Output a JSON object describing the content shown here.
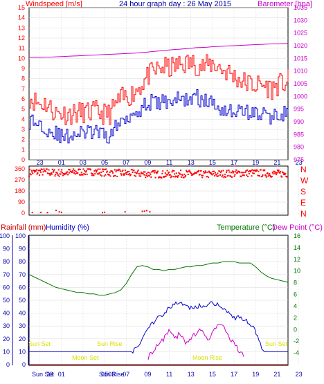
{
  "colors": {
    "wind": "#ff0000",
    "gust_low": "#0000cc",
    "barometer": "#cc00cc",
    "direction": "#ff0000",
    "temperature": "#007700",
    "humidity": "#0000cc",
    "dewpoint": "#cc00cc",
    "rainfall": "#cc0000",
    "sun_labels": "#dddd00",
    "axis_blue": "#0000aa",
    "axis_red": "#ff0000",
    "axis_green": "#007700"
  },
  "chart_data": [
    {
      "type": "line",
      "id": "wind-barometer",
      "title": "24 hour graph day : 26 May 2015",
      "left_axis_label": "Windspeed [m/s]",
      "right_axis_label": "Barometer [hpa]",
      "y_left": {
        "min": 0,
        "max": 15,
        "ticks": [
          0,
          1,
          2,
          3,
          4,
          5,
          6,
          7,
          8,
          9,
          10,
          11,
          12,
          13,
          14,
          15
        ]
      },
      "y_right": {
        "min": 975,
        "max": 1035,
        "ticks": [
          975,
          980,
          985,
          990,
          995,
          1000,
          1005,
          1010,
          1015,
          1020,
          1025,
          1030,
          1035
        ]
      },
      "x_ticks": [
        "23",
        "01",
        "03",
        "05",
        "07",
        "09",
        "11",
        "13",
        "15",
        "17",
        "19",
        "21",
        "23"
      ],
      "series": [
        {
          "key": "wind_max",
          "values": [
            6.2,
            5.8,
            5.5,
            5.6,
            5.0,
            4.6,
            4.6,
            4.5,
            4.6,
            4.6,
            4.7,
            4.6,
            4.8,
            4.6,
            4.5,
            4.6,
            5.5,
            6.0,
            6.2,
            6.5,
            7.0,
            7.6,
            8.3,
            8.6,
            9.0,
            9.1,
            9.0,
            9.2,
            9.4,
            9.5,
            9.5,
            9.4,
            9.2,
            9.3,
            9.5,
            9.2,
            8.8,
            8.6,
            8.2,
            7.9,
            7.6,
            7.5,
            7.3,
            7.4,
            7.2,
            7.0,
            7.4,
            7.5,
            7.8
          ]
        },
        {
          "key": "wind_min",
          "values": [
            3.8,
            3.7,
            3.5,
            3.2,
            2.8,
            2.6,
            2.2,
            2.3,
            2.6,
            2.5,
            2.7,
            2.6,
            2.8,
            2.6,
            2.2,
            2.5,
            3.2,
            3.8,
            4.3,
            4.6,
            4.9,
            5.2,
            5.6,
            5.7,
            5.5,
            5.8,
            5.8,
            6.0,
            5.9,
            6.0,
            6.0,
            6.2,
            5.8,
            5.7,
            5.6,
            5.3,
            5.0,
            4.9,
            4.8,
            4.8,
            4.8,
            4.7,
            4.5,
            4.6,
            4.3,
            4.2,
            4.5,
            4.6,
            4.8
          ]
        },
        {
          "key": "barometer",
          "values": [
            1015.4,
            1015.4,
            1015.4,
            1015.5,
            1015.5,
            1015.6,
            1015.7,
            1015.8,
            1015.9,
            1016.0,
            1016.1,
            1016.2,
            1016.3,
            1016.4,
            1016.5,
            1016.6,
            1016.7,
            1016.8,
            1016.9,
            1017.0,
            1017.1,
            1017.3,
            1017.5,
            1017.7,
            1017.9,
            1018.1,
            1018.3,
            1018.5,
            1018.6,
            1018.8,
            1019.0,
            1019.2,
            1019.3,
            1019.4,
            1019.6,
            1019.7,
            1019.8,
            1019.9,
            1020.0,
            1020.1,
            1020.2,
            1020.3,
            1020.4,
            1020.5,
            1020.6,
            1020.7,
            1020.7,
            1020.8,
            1020.9
          ]
        }
      ]
    },
    {
      "type": "scatter",
      "id": "wind-direction",
      "right_axis_labels": [
        "N",
        "W",
        "S",
        "E",
        "N"
      ],
      "y": {
        "min": 0,
        "max": 360,
        "ticks": [
          0,
          90,
          180,
          270,
          360
        ]
      },
      "x_ticks": [
        "23",
        "01",
        "03",
        "05",
        "07",
        "09",
        "11",
        "13",
        "15",
        "17",
        "19",
        "21",
        "23"
      ],
      "series": [
        {
          "key": "direction_main",
          "band_center": [
            330,
            332,
            335,
            334,
            330,
            328,
            326,
            328,
            332,
            334,
            336,
            338,
            336,
            334,
            330,
            328,
            326,
            325,
            324,
            324,
            322,
            320,
            318,
            318,
            316,
            315,
            316,
            318,
            318,
            320,
            318,
            316,
            315,
            314,
            316,
            318,
            320,
            322,
            322,
            324,
            324,
            326,
            326,
            324,
            322,
            322,
            320,
            320,
            322
          ]
        },
        {
          "key": "direction_low",
          "x_hours": [
            0.3,
            1.1,
            1.7,
            2.5,
            2.8,
            3.0,
            6.8,
            7.0,
            8.9,
            10.5,
            10.7,
            10.9,
            11.2
          ],
          "values": [
            5,
            5,
            4,
            22,
            10,
            6,
            4,
            6,
            10,
            14,
            16,
            20,
            10
          ]
        }
      ]
    },
    {
      "type": "line",
      "id": "rain-humidity-temp",
      "left_labels": {
        "rainfall": "Rainfall (mm)",
        "humidity": "Humidity (%)"
      },
      "right_labels": {
        "temperature": "Temperature (°C)",
        "dewpoint": "Dew Point (°C)"
      },
      "y_left": {
        "min": 0,
        "max": 100,
        "ticks": [
          0,
          10,
          20,
          30,
          40,
          50,
          60,
          70,
          80,
          90,
          100
        ]
      },
      "y_right": {
        "min": -6,
        "max": 16,
        "ticks": [
          -4,
          -2,
          0,
          2,
          4,
          6,
          8,
          10,
          12,
          14,
          16
        ]
      },
      "x_ticks": [
        "23",
        "01",
        "03",
        "05",
        "07",
        "09",
        "11",
        "13",
        "15",
        "17",
        "19",
        "21",
        "23"
      ],
      "annotations": {
        "sun_set_1": "Sun Set",
        "sun_rise": "Sun Rise",
        "sun_set_2": "Sun Set",
        "moon_set": "Moon Set",
        "moon_rise": "Moon Rise",
        "sun_set_axis": "Sun Set",
        "sun_rise_axis": "Sun Rise",
        "axis_23": "23",
        "axis_03": "03"
      },
      "series": [
        {
          "key": "temperature",
          "values": [
            70,
            68,
            66,
            64,
            62,
            60,
            59,
            58,
            57,
            56,
            56,
            55,
            55,
            54,
            54,
            55,
            56,
            58,
            63,
            70,
            76,
            77,
            76,
            74,
            74,
            73,
            74,
            74,
            75,
            76,
            76,
            77,
            77,
            78,
            79,
            79,
            80,
            80,
            80,
            79,
            79,
            79,
            76,
            72,
            69,
            67,
            66,
            65,
            64
          ]
        },
        {
          "key": "humidity",
          "values": [
            10,
            10,
            10,
            10,
            10,
            10,
            10,
            10,
            10,
            10,
            10,
            10,
            10,
            10,
            10,
            10,
            10,
            10,
            10,
            10,
            14,
            20,
            28,
            33,
            38,
            40,
            44,
            47,
            48,
            46,
            44,
            45,
            46,
            47,
            48,
            47,
            44,
            40,
            37,
            36,
            35,
            32,
            25,
            14,
            10,
            10,
            10,
            10,
            10
          ]
        },
        {
          "key": "dewpoint",
          "values": [
            null,
            null,
            null,
            null,
            null,
            null,
            null,
            null,
            null,
            null,
            null,
            null,
            null,
            null,
            null,
            null,
            null,
            null,
            null,
            null,
            null,
            null,
            -4.8,
            -3.6,
            -2.5,
            -1.6,
            -0.3,
            -1.5,
            -0.6,
            -2.3,
            -1.5,
            -0.6,
            0.2,
            -2.0,
            -0.3,
            0.8,
            0.4,
            -1.0,
            -2.5,
            -3.6,
            -4.5,
            null,
            null,
            null,
            null,
            null,
            null,
            null,
            null
          ]
        },
        {
          "key": "rainfall",
          "values": [
            0,
            0,
            0,
            0,
            0,
            0,
            0,
            0,
            0,
            0,
            0,
            0,
            0,
            0,
            0,
            0,
            0,
            0,
            0,
            0,
            0,
            0,
            0,
            0,
            0,
            0,
            0,
            0,
            0,
            0,
            0,
            0,
            0,
            0,
            0,
            0,
            0,
            0,
            0,
            0,
            0,
            0,
            0,
            0,
            0,
            0,
            0,
            0,
            0
          ]
        }
      ]
    }
  ]
}
